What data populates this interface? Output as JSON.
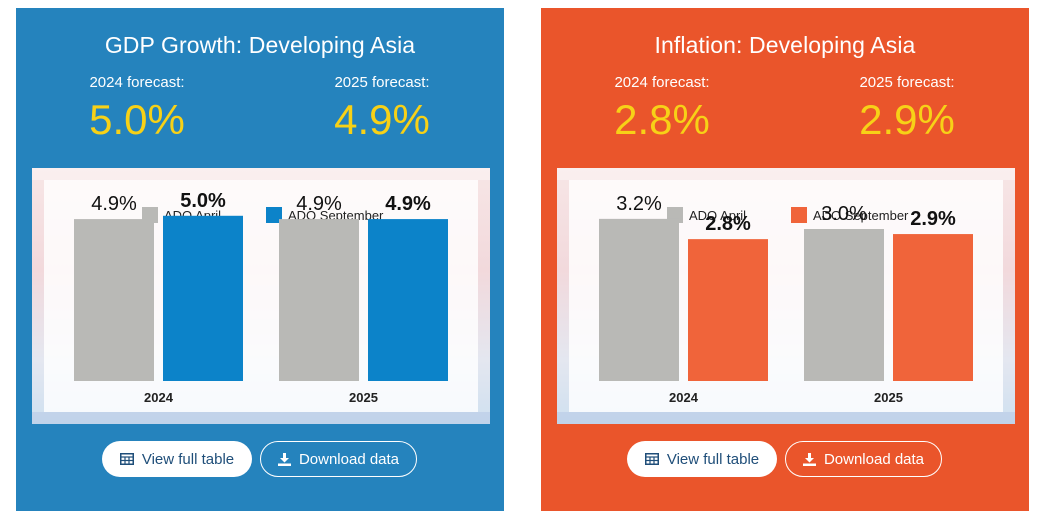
{
  "panels": [
    {
      "title": "GDP Growth: Developing Asia",
      "forecast_a_label": "2024 forecast:",
      "forecast_a_value": "5.0%",
      "forecast_b_label": "2025 forecast:",
      "forecast_b_value": "4.9%",
      "view_table_label": "View full table",
      "download_label": "Download data",
      "colors": {
        "background": "#2583bd",
        "accent": "#f7d117",
        "april": "#b9b9b6",
        "september": "#0c83c9"
      }
    },
    {
      "title": "Inflation: Developing Asia",
      "forecast_a_label": "2024 forecast:",
      "forecast_a_value": "2.8%",
      "forecast_b_label": "2025 forecast:",
      "forecast_b_value": "2.9%",
      "view_table_label": "View full table",
      "download_label": "Download data",
      "colors": {
        "background": "#ea552b",
        "accent": "#f7d117",
        "april": "#b9b9b6",
        "september": "#f0643a"
      }
    }
  ],
  "chart_data": [
    {
      "type": "bar",
      "categories": [
        "2024",
        "2025"
      ],
      "series": [
        {
          "name": "ADO April",
          "values": [
            4.9,
            4.9
          ],
          "labels": [
            "4.9%",
            "4.9%"
          ],
          "color": "#b9b9b6"
        },
        {
          "name": "ADO September",
          "values": [
            5.0,
            4.9
          ],
          "labels": [
            "5.0%",
            "4.9%"
          ],
          "color": "#0c83c9"
        }
      ],
      "ylim": [
        0,
        5.75
      ],
      "legend": "top-center",
      "grid": false
    },
    {
      "type": "bar",
      "categories": [
        "2024",
        "2025"
      ],
      "series": [
        {
          "name": "ADO April",
          "values": [
            3.2,
            3.0
          ],
          "labels": [
            "3.2%",
            "3.0%"
          ],
          "color": "#b9b9b6"
        },
        {
          "name": "ADO September",
          "values": [
            2.8,
            2.9
          ],
          "labels": [
            "2.8%",
            "2.9%"
          ],
          "color": "#f0643a"
        }
      ],
      "ylim": [
        0,
        3.75
      ],
      "legend": "top-center",
      "grid": false
    }
  ],
  "icons": {
    "table": "table-icon",
    "download": "download-icon"
  }
}
